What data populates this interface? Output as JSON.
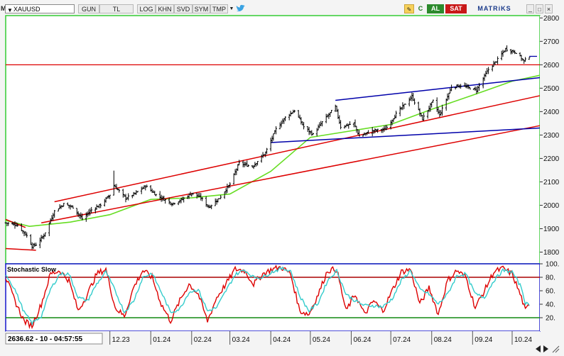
{
  "toolbar": {
    "menu_label": "M",
    "symbol": "XAUUSD",
    "buttons": [
      "GUN",
      "TL",
      "LOG",
      "KHN",
      "SVD",
      "SYM",
      "TMP"
    ],
    "buy_label": "AL",
    "sell_label": "SAT",
    "brand": "MATRiKS"
  },
  "status": {
    "readout": "2636.62 - 10 - 04:57:55"
  },
  "colors": {
    "candle": "#000000",
    "trend_red": "#dd0000",
    "channel_blue": "#0000aa",
    "moving_average": "#66dd22",
    "stoch_k": "#dd0000",
    "stoch_d": "#33cccc",
    "stoch_upper": "#aa0000",
    "stoch_lower": "#118811",
    "upper_border": "#22cc22",
    "lower_border": "#1515cc"
  },
  "chart_data": [
    {
      "type": "candlestick",
      "title": "",
      "y_ticks": [
        1800,
        1900,
        2000,
        2100,
        2200,
        2300,
        2400,
        2500,
        2600,
        2700,
        2800
      ],
      "ylim": [
        1750,
        2810
      ],
      "grid": false,
      "x_ticks": [
        {
          "label": "12.23",
          "date": "2023-12-01"
        },
        {
          "label": "01.24",
          "date": "2024-01-01"
        },
        {
          "label": "02.24",
          "date": "2024-02-01"
        },
        {
          "label": "03.24",
          "date": "2024-03-01"
        },
        {
          "label": "04.24",
          "date": "2024-04-01"
        },
        {
          "label": "05.24",
          "date": "2024-05-01"
        },
        {
          "label": "06.24",
          "date": "2024-06-01"
        },
        {
          "label": "07.24",
          "date": "2024-07-01"
        },
        {
          "label": "08.24",
          "date": "2024-08-01"
        },
        {
          "label": "09.24",
          "date": "2024-09-01"
        },
        {
          "label": "10.24",
          "date": "2024-10-01"
        }
      ],
      "xlim": [
        "2023-09-13",
        "2024-10-22"
      ],
      "close_anchors": [
        [
          "2023-09-13",
          1925
        ],
        [
          "2023-09-22",
          1915
        ],
        [
          "2023-09-29",
          1870
        ],
        [
          "2023-10-03",
          1825
        ],
        [
          "2023-10-06",
          1832
        ],
        [
          "2023-10-12",
          1872
        ],
        [
          "2023-10-20",
          1975
        ],
        [
          "2023-10-27",
          2005
        ],
        [
          "2023-11-03",
          1992
        ],
        [
          "2023-11-10",
          1942
        ],
        [
          "2023-11-17",
          1980
        ],
        [
          "2023-11-24",
          2002
        ],
        [
          "2023-12-01",
          2045
        ],
        [
          "2023-12-04",
          2085
        ],
        [
          "2023-12-13",
          2030
        ],
        [
          "2023-12-20",
          2050
        ],
        [
          "2023-12-28",
          2082
        ],
        [
          "2024-01-05",
          2045
        ],
        [
          "2024-01-17",
          2007
        ],
        [
          "2024-01-25",
          2025
        ],
        [
          "2024-02-01",
          2052
        ],
        [
          "2024-02-08",
          2032
        ],
        [
          "2024-02-14",
          1992
        ],
        [
          "2024-02-22",
          2030
        ],
        [
          "2024-03-01",
          2090
        ],
        [
          "2024-03-08",
          2180
        ],
        [
          "2024-03-18",
          2165
        ],
        [
          "2024-03-28",
          2225
        ],
        [
          "2024-04-05",
          2325
        ],
        [
          "2024-04-12",
          2375
        ],
        [
          "2024-04-19",
          2405
        ],
        [
          "2024-04-26",
          2335
        ],
        [
          "2024-05-03",
          2302
        ],
        [
          "2024-05-10",
          2355
        ],
        [
          "2024-05-20",
          2420
        ],
        [
          "2024-05-24",
          2335
        ],
        [
          "2024-06-03",
          2350
        ],
        [
          "2024-06-07",
          2295
        ],
        [
          "2024-06-17",
          2318
        ],
        [
          "2024-06-27",
          2325
        ],
        [
          "2024-07-05",
          2390
        ],
        [
          "2024-07-17",
          2465
        ],
        [
          "2024-07-25",
          2368
        ],
        [
          "2024-08-02",
          2445
        ],
        [
          "2024-08-07",
          2385
        ],
        [
          "2024-08-16",
          2505
        ],
        [
          "2024-08-23",
          2512
        ],
        [
          "2024-09-04",
          2492
        ],
        [
          "2024-09-13",
          2580
        ],
        [
          "2024-09-20",
          2622
        ],
        [
          "2024-09-26",
          2668
        ],
        [
          "2024-10-04",
          2653
        ],
        [
          "2024-10-10",
          2615
        ],
        [
          "2024-10-14",
          2636
        ]
      ],
      "daily_range": 24,
      "spikes": [
        {
          "date": "2023-12-04",
          "high": 2148
        }
      ],
      "horizontal_lines": [
        {
          "name": "resistance",
          "value": 2600,
          "color": "trend_red"
        },
        {
          "name": "last-close-marker",
          "value": 2636,
          "from": "2024-10-14",
          "color": "channel_blue"
        }
      ],
      "trend_lines": [
        {
          "name": "lower-channel-red",
          "from": [
            "2023-10-10",
            1925
          ],
          "to": [
            "2024-10-22",
            2340
          ],
          "color": "trend_red"
        },
        {
          "name": "upper-channel-red",
          "from": [
            "2023-10-20",
            2015
          ],
          "to": [
            "2024-10-22",
            2468
          ],
          "color": "trend_red"
        },
        {
          "name": "short-red-segment",
          "from": [
            "2023-09-13",
            1940
          ],
          "to": [
            "2023-09-28",
            1905
          ],
          "color": "trend_red"
        },
        {
          "name": "bottom-red-segment",
          "from": [
            "2023-09-13",
            1815
          ],
          "to": [
            "2023-10-06",
            1808
          ],
          "color": "trend_red"
        },
        {
          "name": "support-blue",
          "from": [
            "2024-04-01",
            2268
          ],
          "to": [
            "2024-10-22",
            2330
          ],
          "color": "channel_blue"
        },
        {
          "name": "resistance-blue",
          "from": [
            "2024-05-20",
            2448
          ],
          "to": [
            "2024-10-22",
            2545
          ],
          "color": "channel_blue"
        }
      ],
      "moving_average": [
        [
          "2023-09-13",
          1935
        ],
        [
          "2023-10-01",
          1910
        ],
        [
          "2023-11-01",
          1928
        ],
        [
          "2023-12-01",
          1960
        ],
        [
          "2024-01-01",
          2025
        ],
        [
          "2024-02-01",
          2032
        ],
        [
          "2024-03-01",
          2048
        ],
        [
          "2024-04-01",
          2145
        ],
        [
          "2024-05-01",
          2290
        ],
        [
          "2024-06-01",
          2318
        ],
        [
          "2024-07-01",
          2345
        ],
        [
          "2024-08-01",
          2410
        ],
        [
          "2024-09-01",
          2470
        ],
        [
          "2024-10-01",
          2530
        ],
        [
          "2024-10-22",
          2555
        ]
      ]
    },
    {
      "type": "line",
      "title": "Stochastic Slow",
      "y_ticks": [
        20,
        40,
        60,
        80,
        100
      ],
      "ylim": [
        0,
        100
      ],
      "levels": [
        {
          "name": "overbought",
          "value": 80,
          "color": "stoch_upper"
        },
        {
          "name": "oversold",
          "value": 20,
          "color": "stoch_lower"
        }
      ],
      "series": [
        {
          "key": "k",
          "color": "stoch_k",
          "anchors": [
            [
              "2023-09-13",
              80
            ],
            [
              "2023-09-20",
              45
            ],
            [
              "2023-09-27",
              15
            ],
            [
              "2023-10-03",
              8
            ],
            [
              "2023-10-10",
              40
            ],
            [
              "2023-10-17",
              85
            ],
            [
              "2023-10-24",
              90
            ],
            [
              "2023-10-31",
              75
            ],
            [
              "2023-11-07",
              30
            ],
            [
              "2023-11-14",
              55
            ],
            [
              "2023-11-21",
              85
            ],
            [
              "2023-11-28",
              92
            ],
            [
              "2023-12-05",
              35
            ],
            [
              "2023-12-12",
              22
            ],
            [
              "2023-12-19",
              65
            ],
            [
              "2023-12-26",
              90
            ],
            [
              "2024-01-02",
              80
            ],
            [
              "2024-01-09",
              40
            ],
            [
              "2024-01-16",
              15
            ],
            [
              "2024-01-23",
              45
            ],
            [
              "2024-01-30",
              70
            ],
            [
              "2024-02-06",
              55
            ],
            [
              "2024-02-13",
              15
            ],
            [
              "2024-02-20",
              50
            ],
            [
              "2024-02-27",
              70
            ],
            [
              "2024-03-05",
              92
            ],
            [
              "2024-03-12",
              90
            ],
            [
              "2024-03-19",
              70
            ],
            [
              "2024-03-26",
              85
            ],
            [
              "2024-04-02",
              92
            ],
            [
              "2024-04-09",
              95
            ],
            [
              "2024-04-16",
              85
            ],
            [
              "2024-04-23",
              30
            ],
            [
              "2024-04-30",
              25
            ],
            [
              "2024-05-07",
              55
            ],
            [
              "2024-05-14",
              90
            ],
            [
              "2024-05-21",
              92
            ],
            [
              "2024-05-28",
              30
            ],
            [
              "2024-06-04",
              55
            ],
            [
              "2024-06-11",
              25
            ],
            [
              "2024-06-18",
              45
            ],
            [
              "2024-06-25",
              30
            ],
            [
              "2024-07-02",
              60
            ],
            [
              "2024-07-09",
              88
            ],
            [
              "2024-07-16",
              92
            ],
            [
              "2024-07-23",
              40
            ],
            [
              "2024-07-30",
              65
            ],
            [
              "2024-08-06",
              25
            ],
            [
              "2024-08-13",
              75
            ],
            [
              "2024-08-20",
              90
            ],
            [
              "2024-08-27",
              80
            ],
            [
              "2024-09-03",
              35
            ],
            [
              "2024-09-10",
              60
            ],
            [
              "2024-09-17",
              88
            ],
            [
              "2024-09-24",
              93
            ],
            [
              "2024-10-01",
              85
            ],
            [
              "2024-10-08",
              50
            ],
            [
              "2024-10-11",
              30
            ],
            [
              "2024-10-14",
              40
            ]
          ]
        },
        {
          "key": "d",
          "color": "stoch_d",
          "anchors": [
            [
              "2023-09-13",
              85
            ],
            [
              "2023-09-20",
              62
            ],
            [
              "2023-09-27",
              28
            ],
            [
              "2023-10-03",
              12
            ],
            [
              "2023-10-10",
              22
            ],
            [
              "2023-10-17",
              62
            ],
            [
              "2023-10-24",
              85
            ],
            [
              "2023-10-31",
              85
            ],
            [
              "2023-11-07",
              50
            ],
            [
              "2023-11-14",
              45
            ],
            [
              "2023-11-21",
              70
            ],
            [
              "2023-11-28",
              88
            ],
            [
              "2023-12-05",
              60
            ],
            [
              "2023-12-12",
              28
            ],
            [
              "2023-12-19",
              45
            ],
            [
              "2023-12-26",
              80
            ],
            [
              "2024-01-02",
              86
            ],
            [
              "2024-01-09",
              58
            ],
            [
              "2024-01-16",
              28
            ],
            [
              "2024-01-23",
              33
            ],
            [
              "2024-01-30",
              58
            ],
            [
              "2024-02-06",
              62
            ],
            [
              "2024-02-13",
              30
            ],
            [
              "2024-02-20",
              35
            ],
            [
              "2024-02-27",
              60
            ],
            [
              "2024-03-05",
              84
            ],
            [
              "2024-03-12",
              91
            ],
            [
              "2024-03-19",
              80
            ],
            [
              "2024-03-26",
              80
            ],
            [
              "2024-04-02",
              88
            ],
            [
              "2024-04-09",
              93
            ],
            [
              "2024-04-16",
              90
            ],
            [
              "2024-04-23",
              52
            ],
            [
              "2024-04-30",
              30
            ],
            [
              "2024-05-07",
              42
            ],
            [
              "2024-05-14",
              75
            ],
            [
              "2024-05-21",
              90
            ],
            [
              "2024-05-28",
              55
            ],
            [
              "2024-06-04",
              45
            ],
            [
              "2024-06-11",
              38
            ],
            [
              "2024-06-18",
              38
            ],
            [
              "2024-06-25",
              36
            ],
            [
              "2024-07-02",
              48
            ],
            [
              "2024-07-09",
              75
            ],
            [
              "2024-07-16",
              90
            ],
            [
              "2024-07-23",
              62
            ],
            [
              "2024-07-30",
              55
            ],
            [
              "2024-08-06",
              40
            ],
            [
              "2024-08-13",
              55
            ],
            [
              "2024-08-20",
              82
            ],
            [
              "2024-08-27",
              85
            ],
            [
              "2024-09-03",
              55
            ],
            [
              "2024-09-10",
              50
            ],
            [
              "2024-09-17",
              75
            ],
            [
              "2024-09-24",
              90
            ],
            [
              "2024-10-01",
              88
            ],
            [
              "2024-10-08",
              65
            ],
            [
              "2024-10-11",
              42
            ],
            [
              "2024-10-14",
              38
            ]
          ]
        }
      ]
    }
  ]
}
